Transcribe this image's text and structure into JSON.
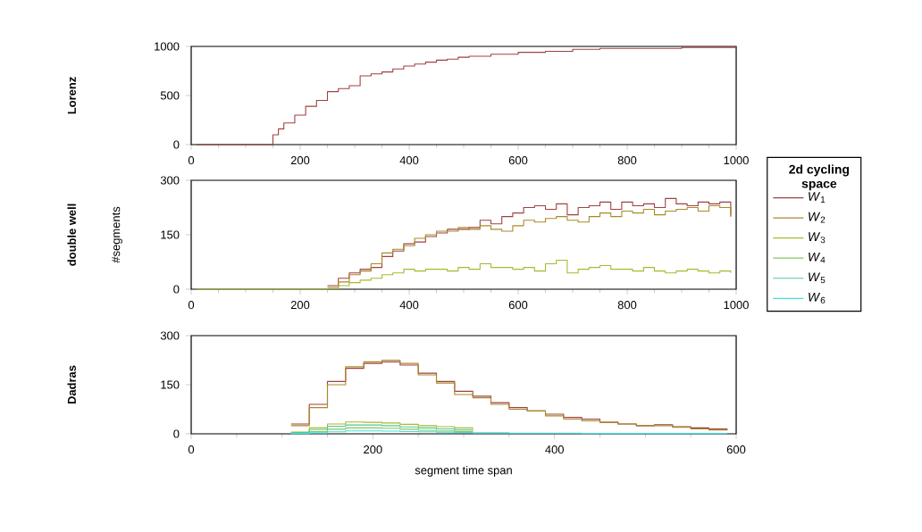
{
  "chart_data": [
    {
      "type": "step",
      "ylabel": "Lorenz",
      "xlim": [
        0,
        1000
      ],
      "ylim": [
        0,
        1000
      ],
      "xticks": [
        0,
        200,
        400,
        600,
        800,
        1000
      ],
      "yticks": [
        0,
        500,
        1000
      ],
      "x": [
        10,
        150,
        160,
        170,
        190,
        210,
        230,
        250,
        270,
        290,
        310,
        330,
        350,
        370,
        390,
        410,
        430,
        450,
        470,
        490,
        510,
        550,
        600,
        650,
        700,
        750,
        800,
        900,
        1000
      ],
      "series": [
        {
          "color": "#a04040",
          "values": [
            0,
            100,
            160,
            220,
            300,
            390,
            450,
            540,
            570,
            600,
            700,
            720,
            740,
            770,
            800,
            820,
            840,
            860,
            870,
            890,
            900,
            920,
            940,
            950,
            970,
            980,
            980,
            990,
            1000
          ]
        }
      ]
    },
    {
      "type": "step",
      "ylabel": "double well",
      "annotations": [
        "#segments"
      ],
      "xlim": [
        0,
        1000
      ],
      "ylim": [
        0,
        300
      ],
      "xticks": [
        0,
        200,
        400,
        600,
        800,
        1000
      ],
      "yticks": [
        0,
        150,
        300
      ],
      "x": [
        10,
        30,
        50,
        70,
        90,
        110,
        130,
        150,
        170,
        190,
        210,
        230,
        250,
        270,
        290,
        310,
        330,
        350,
        370,
        390,
        410,
        430,
        450,
        470,
        490,
        510,
        530,
        550,
        570,
        590,
        610,
        630,
        650,
        670,
        690,
        710,
        730,
        750,
        770,
        790,
        810,
        830,
        850,
        870,
        890,
        910,
        930,
        950,
        970,
        990
      ],
      "series": [
        {
          "color": "#a04040",
          "values": [
            null,
            null,
            null,
            null,
            null,
            null,
            null,
            null,
            null,
            null,
            null,
            null,
            10,
            30,
            45,
            55,
            60,
            90,
            105,
            125,
            130,
            145,
            155,
            165,
            165,
            170,
            190,
            180,
            200,
            210,
            225,
            230,
            220,
            235,
            205,
            225,
            230,
            240,
            220,
            240,
            230,
            235,
            225,
            250,
            235,
            230,
            240,
            235,
            240,
            200
          ]
        },
        {
          "color": "#a88a2a",
          "values": [
            null,
            null,
            null,
            null,
            null,
            null,
            null,
            null,
            null,
            null,
            null,
            null,
            5,
            20,
            40,
            50,
            70,
            100,
            110,
            120,
            140,
            150,
            160,
            160,
            170,
            165,
            175,
            165,
            160,
            175,
            190,
            185,
            195,
            200,
            190,
            185,
            200,
            210,
            200,
            215,
            210,
            220,
            205,
            215,
            220,
            225,
            215,
            230,
            225,
            205
          ]
        },
        {
          "color": "#aab830",
          "values": [
            0,
            0,
            0,
            0,
            0,
            0,
            0,
            0,
            0,
            0,
            0,
            0,
            2,
            10,
            18,
            25,
            30,
            40,
            45,
            55,
            50,
            55,
            55,
            50,
            60,
            55,
            70,
            60,
            60,
            55,
            60,
            50,
            70,
            80,
            45,
            55,
            60,
            65,
            55,
            55,
            50,
            60,
            50,
            45,
            50,
            55,
            50,
            45,
            50,
            45
          ]
        }
      ]
    },
    {
      "type": "step",
      "ylabel": "Dadras",
      "xlabel": "segment time span",
      "xlim": [
        0,
        600
      ],
      "ylim": [
        0,
        300
      ],
      "xticks": [
        0,
        200,
        400,
        600
      ],
      "yticks": [
        0,
        150,
        300
      ],
      "legend": "right",
      "legend_title": "2d cycling space",
      "x": [
        110,
        130,
        150,
        170,
        190,
        210,
        230,
        250,
        270,
        290,
        310,
        330,
        350,
        370,
        390,
        410,
        430,
        450,
        470,
        490,
        510,
        530,
        550,
        570,
        590
      ],
      "series": [
        {
          "name": "*W*$_{1}$",
          "color": "#a04040",
          "values": [
            30,
            90,
            160,
            200,
            215,
            220,
            210,
            185,
            160,
            130,
            115,
            95,
            80,
            70,
            60,
            50,
            45,
            35,
            30,
            25,
            28,
            22,
            18,
            15,
            12
          ]
        },
        {
          "name": "*W*$_{2}$",
          "color": "#a88a2a",
          "values": [
            25,
            80,
            150,
            205,
            220,
            225,
            215,
            180,
            155,
            120,
            110,
            90,
            75,
            70,
            55,
            45,
            40,
            35,
            30,
            25,
            25,
            20,
            15,
            12,
            10
          ]
        },
        {
          "name": "*W*$_{3}$",
          "color": "#aab830",
          "values": [
            5,
            18,
            30,
            36,
            35,
            33,
            29,
            25,
            22,
            18,
            15,
            null,
            null,
            null,
            null,
            null,
            null,
            null,
            null,
            null,
            null,
            null,
            null,
            null,
            null
          ]
        },
        {
          "name": "*W*$_{4}$",
          "color": "#80c860",
          "values": [
            2,
            7,
            14,
            18,
            18,
            17,
            14,
            11,
            9,
            7,
            5,
            null,
            null,
            null,
            null,
            null,
            null,
            null,
            null,
            null,
            null,
            null,
            null,
            null,
            null
          ]
        },
        {
          "name": "*W*$_{5}$",
          "color": "#50c890",
          "values": [
            4,
            13,
            23,
            27,
            27,
            25,
            21,
            18,
            15,
            12,
            10,
            null,
            null,
            null,
            null,
            null,
            null,
            null,
            null,
            null,
            null,
            null,
            null,
            null,
            null
          ]
        },
        {
          "name": "*W*$_{6}$",
          "color": "#40e0d8",
          "values": [
            1,
            3,
            6,
            9,
            9,
            8,
            7,
            6,
            5,
            4,
            3,
            3,
            2,
            2,
            2,
            2,
            1,
            1,
            1,
            1,
            1,
            1,
            1,
            1,
            1
          ]
        }
      ]
    }
  ]
}
